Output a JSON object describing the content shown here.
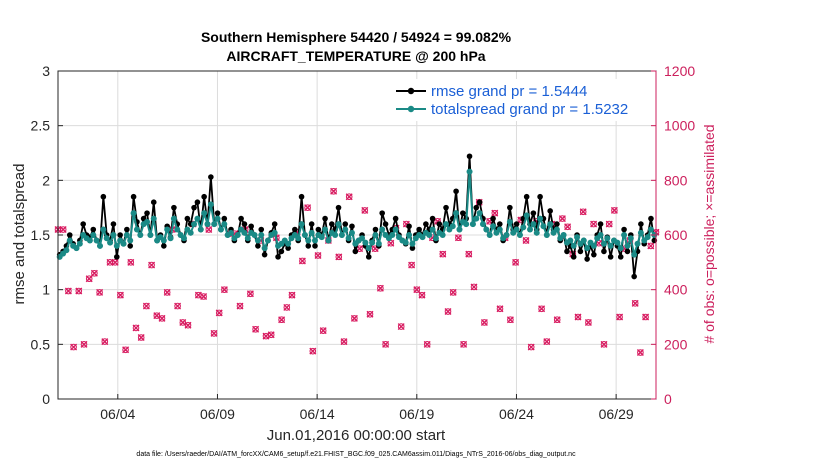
{
  "chart_data": {
    "type": "line",
    "title_line1": "Southern Hemisphere 54420 / 54924 = 99.082%",
    "title_line2": "AIRCRAFT_TEMPERATURE @ 200 hPa",
    "xlabel": "Jun.01,2016 00:00:00 start",
    "ylabel_left": "rmse and totalspread",
    "ylabel_right": "# of obs: o=possible; ×=assimilated",
    "xlim": [
      1.0,
      31.0
    ],
    "ylim_left": [
      0,
      3
    ],
    "ylim_right": [
      0,
      1200
    ],
    "x_ticks": [
      {
        "value": 4.0,
        "label": "06/04"
      },
      {
        "value": 9.0,
        "label": "06/09"
      },
      {
        "value": 14.0,
        "label": "06/14"
      },
      {
        "value": 19.0,
        "label": "06/19"
      },
      {
        "value": 24.0,
        "label": "06/24"
      },
      {
        "value": 29.0,
        "label": "06/29"
      }
    ],
    "y_ticks_left": [
      "0",
      "0.5",
      "1",
      "1.5",
      "2",
      "2.5",
      "3"
    ],
    "y_ticks_right": [
      "0",
      "200",
      "400",
      "600",
      "800",
      "1000",
      "1200"
    ],
    "legend": [
      {
        "label": "rmse grand pr = 1.5444",
        "color": "#000000"
      },
      {
        "label": "totalspread grand pr = 1.5232",
        "color": "#1a8a86"
      }
    ],
    "colors": {
      "rmse": "#000000",
      "spread": "#1a8a86",
      "obs": "#d81b60",
      "axis_right": "#cc1f5c"
    },
    "rmse": [
      1.32,
      1.35,
      1.4,
      1.5,
      1.42,
      1.38,
      1.45,
      1.6,
      1.5,
      1.48,
      1.55,
      1.45,
      1.4,
      1.85,
      1.5,
      1.45,
      1.6,
      1.3,
      1.5,
      1.42,
      1.55,
      1.4,
      1.85,
      1.62,
      1.5,
      1.65,
      1.7,
      1.5,
      1.8,
      1.45,
      1.5,
      1.4,
      1.58,
      1.48,
      1.75,
      1.6,
      1.5,
      1.45,
      1.65,
      1.6,
      1.75,
      1.8,
      1.55,
      1.85,
      1.6,
      2.03,
      1.6,
      1.7,
      1.55,
      1.65,
      1.5,
      1.55,
      1.45,
      1.5,
      1.65,
      1.6,
      1.45,
      1.58,
      1.5,
      1.4,
      1.55,
      1.32,
      1.45,
      1.52,
      1.6,
      1.3,
      1.35,
      1.42,
      1.38,
      1.5,
      1.55,
      1.45,
      1.85,
      1.5,
      1.4,
      1.6,
      1.4,
      1.55,
      1.5,
      1.65,
      1.45,
      1.6,
      1.55,
      1.75,
      1.5,
      1.6,
      1.45,
      1.58,
      1.35,
      1.45,
      1.5,
      1.4,
      1.3,
      1.45,
      1.55,
      1.4,
      1.7,
      1.6,
      1.5,
      1.55,
      1.65,
      1.5,
      1.45,
      1.42,
      1.58,
      1.38,
      1.5,
      1.55,
      1.5,
      1.6,
      1.55,
      1.65,
      1.45,
      1.6,
      1.55,
      1.75,
      1.6,
      1.65,
      1.9,
      1.55,
      1.7,
      1.65,
      2.22,
      1.6,
      1.75,
      1.8,
      1.65,
      1.55,
      1.5,
      1.65,
      1.55,
      1.6,
      1.45,
      1.5,
      1.75,
      1.55,
      1.6,
      1.5,
      1.65,
      1.85,
      1.6,
      1.7,
      1.55,
      1.85,
      1.65,
      1.5,
      1.72,
      1.55,
      1.6,
      1.45,
      1.5,
      1.35,
      1.4,
      1.3,
      1.5,
      1.35,
      1.45,
      1.28,
      1.4,
      1.32,
      1.5,
      1.6,
      1.35,
      1.48,
      1.3,
      1.45,
      1.4,
      1.3,
      1.55,
      1.35,
      1.5,
      1.12,
      1.35,
      1.6,
      1.42,
      1.5,
      1.65,
      1.45
    ],
    "spread": [
      1.3,
      1.33,
      1.36,
      1.45,
      1.4,
      1.38,
      1.42,
      1.5,
      1.47,
      1.45,
      1.5,
      1.45,
      1.4,
      1.55,
      1.47,
      1.43,
      1.5,
      1.4,
      1.45,
      1.42,
      1.5,
      1.45,
      1.7,
      1.55,
      1.5,
      1.6,
      1.62,
      1.5,
      1.65,
      1.45,
      1.48,
      1.45,
      1.55,
      1.47,
      1.65,
      1.55,
      1.5,
      1.47,
      1.55,
      1.52,
      1.6,
      1.65,
      1.55,
      1.7,
      1.6,
      1.78,
      1.6,
      1.65,
      1.55,
      1.6,
      1.5,
      1.52,
      1.47,
      1.5,
      1.55,
      1.52,
      1.47,
      1.52,
      1.5,
      1.45,
      1.5,
      1.38,
      1.45,
      1.5,
      1.52,
      1.4,
      1.42,
      1.45,
      1.42,
      1.47,
      1.5,
      1.47,
      1.6,
      1.5,
      1.45,
      1.52,
      1.45,
      1.5,
      1.48,
      1.55,
      1.45,
      1.52,
      1.5,
      1.6,
      1.5,
      1.55,
      1.47,
      1.52,
      1.42,
      1.45,
      1.47,
      1.43,
      1.38,
      1.43,
      1.5,
      1.42,
      1.55,
      1.5,
      1.47,
      1.5,
      1.55,
      1.48,
      1.45,
      1.43,
      1.5,
      1.42,
      1.47,
      1.5,
      1.48,
      1.52,
      1.5,
      1.55,
      1.47,
      1.52,
      1.5,
      1.6,
      1.55,
      1.58,
      1.7,
      1.55,
      1.62,
      1.6,
      2.08,
      1.6,
      1.65,
      1.7,
      1.6,
      1.55,
      1.5,
      1.58,
      1.52,
      1.55,
      1.47,
      1.5,
      1.62,
      1.52,
      1.55,
      1.5,
      1.57,
      1.68,
      1.55,
      1.6,
      1.52,
      1.65,
      1.58,
      1.5,
      1.6,
      1.52,
      1.55,
      1.47,
      1.5,
      1.43,
      1.45,
      1.4,
      1.48,
      1.42,
      1.45,
      1.38,
      1.43,
      1.4,
      1.47,
      1.5,
      1.42,
      1.47,
      1.4,
      1.45,
      1.43,
      1.38,
      1.5,
      1.4,
      1.47,
      1.32,
      1.42,
      1.52,
      1.45,
      1.48,
      1.55,
      1.5
    ],
    "obs_counts": [
      620,
      620,
      395,
      190,
      395,
      200,
      440,
      460,
      390,
      210,
      500,
      500,
      380,
      180,
      500,
      260,
      225,
      340,
      490,
      305,
      295,
      390,
      620,
      340,
      280,
      270,
      640,
      380,
      375,
      620,
      240,
      315,
      400,
      605,
      605,
      340,
      620,
      385,
      255,
      580,
      230,
      235,
      590,
      290,
      335,
      380,
      610,
      505,
      700,
      175,
      525,
      250,
      580,
      760,
      520,
      210,
      740,
      295,
      550,
      690,
      310,
      550,
      405,
      200,
      570,
      625,
      265,
      640,
      490,
      400,
      380,
      200,
      590,
      650,
      530,
      320,
      390,
      590,
      200,
      530,
      410,
      720,
      280,
      650,
      680,
      330,
      590,
      290,
      500,
      655,
      580,
      190,
      650,
      330,
      210,
      640,
      290,
      660,
      630,
      530,
      300,
      685,
      280,
      640,
      570,
      200,
      640,
      690,
      300,
      550,
      580,
      350,
      170,
      300,
      560,
      610
    ]
  }
}
